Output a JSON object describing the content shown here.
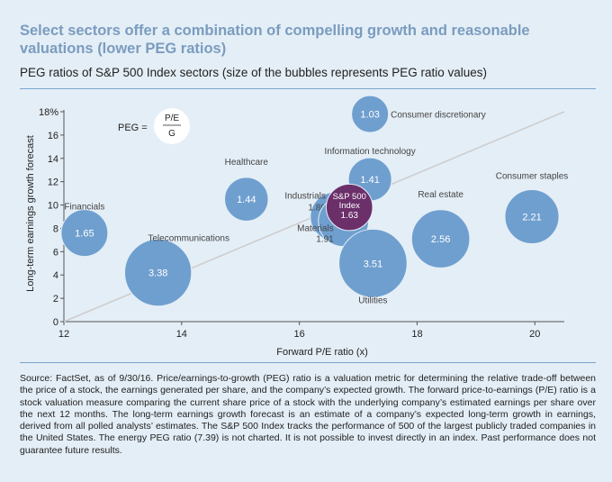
{
  "title": "Select sectors offer a combination of compelling growth and reasonable valuations (lower PEG ratios)",
  "subtitle": "PEG ratios of S&P 500 Index sectors (size of the bubbles represents PEG ratio values)",
  "formula": {
    "lhs": "PEG =",
    "numerator": "P/E",
    "denominator": "G"
  },
  "source": "Source: FactSet, as of 9/30/16. Price/earnings-to-growth (PEG) ratio is a valuation metric for determining the relative trade-off between the price of a stock, the earnings generated per share, and the company’s expected growth. The forward price-to-earnings (P/E) ratio is a stock valuation measure comparing the current share price of a stock with the underlying company’s estimated earnings per share over the next 12 months. The long-term earnings growth forecast is an estimate of a company’s expected long-term growth in earnings, derived from all polled analysts’ estimates. The S&P 500 Index tracks the performance of 500 of the largest publicly traded companies in the United States. The energy PEG ratio (7.39) is not charted. It is not possible to invest directly in an index. Past performance does not guarantee future results.",
  "colors": {
    "title": "#7a9cbf",
    "bubble": "#6f9fcf",
    "highlight": "#6b2f6a",
    "background": "#e4eef6",
    "trend": "#cccccc"
  },
  "chart_data": {
    "type": "scatter",
    "xlabel": "Forward P/E ratio (x)",
    "ylabel": "Long-term earnings growth forecast",
    "xlim": [
      12,
      20.5
    ],
    "ylim": [
      0,
      18
    ],
    "xticks": [
      12,
      14,
      16,
      18,
      20
    ],
    "xtick_labels": [
      "12",
      "14",
      "16",
      "18",
      "20"
    ],
    "yticks": [
      0,
      2,
      4,
      6,
      8,
      10,
      12,
      14,
      16,
      18
    ],
    "ytick_labels": [
      "0",
      "2",
      "4",
      "6",
      "8",
      "10",
      "12",
      "14",
      "16",
      "18%"
    ],
    "trend_line": {
      "x": [
        12,
        20.5
      ],
      "y": [
        0,
        18
      ]
    },
    "points": [
      {
        "name": "Financials",
        "x": 12.35,
        "y": 7.6,
        "peg": 1.65,
        "value_label": "1.65",
        "sector_label": "Financials"
      },
      {
        "name": "Telecommunications",
        "x": 13.6,
        "y": 4.2,
        "peg": 3.38,
        "value_label": "3.38",
        "sector_label": "Telecommunications"
      },
      {
        "name": "Healthcare",
        "x": 15.1,
        "y": 10.5,
        "peg": 1.44,
        "value_label": "1.44",
        "sector_label": "Healthcare"
      },
      {
        "name": "Industrials",
        "x": 16.6,
        "y": 9.0,
        "peg": 1.8,
        "value_label": "",
        "sector_label": "Industrials",
        "sector_value": "1.80"
      },
      {
        "name": "Materials",
        "x": 16.75,
        "y": 8.6,
        "peg": 1.91,
        "value_label": "",
        "sector_label": "Materials",
        "sector_value": "1.91"
      },
      {
        "name": "S&P 500 Index",
        "x": 16.85,
        "y": 9.8,
        "peg": 1.63,
        "value_label": "1.63",
        "sector_label": "",
        "highlight": true,
        "inner_label": [
          "S&P 500",
          "Index"
        ]
      },
      {
        "name": "Information technology",
        "x": 17.2,
        "y": 12.2,
        "peg": 1.41,
        "value_label": "1.41",
        "sector_label": "Information technology"
      },
      {
        "name": "Consumer discretionary",
        "x": 17.2,
        "y": 17.8,
        "peg": 1.03,
        "value_label": "1.03",
        "sector_label": "Consumer discretionary"
      },
      {
        "name": "Utilities",
        "x": 17.25,
        "y": 5.0,
        "peg": 3.51,
        "value_label": "3.51",
        "sector_label": "Utilities"
      },
      {
        "name": "Real estate",
        "x": 18.4,
        "y": 7.1,
        "peg": 2.56,
        "value_label": "2.56",
        "sector_label": "Real estate"
      },
      {
        "name": "Consumer staples",
        "x": 19.95,
        "y": 9.0,
        "peg": 2.21,
        "value_label": "2.21",
        "sector_label": "Consumer staples"
      }
    ]
  }
}
